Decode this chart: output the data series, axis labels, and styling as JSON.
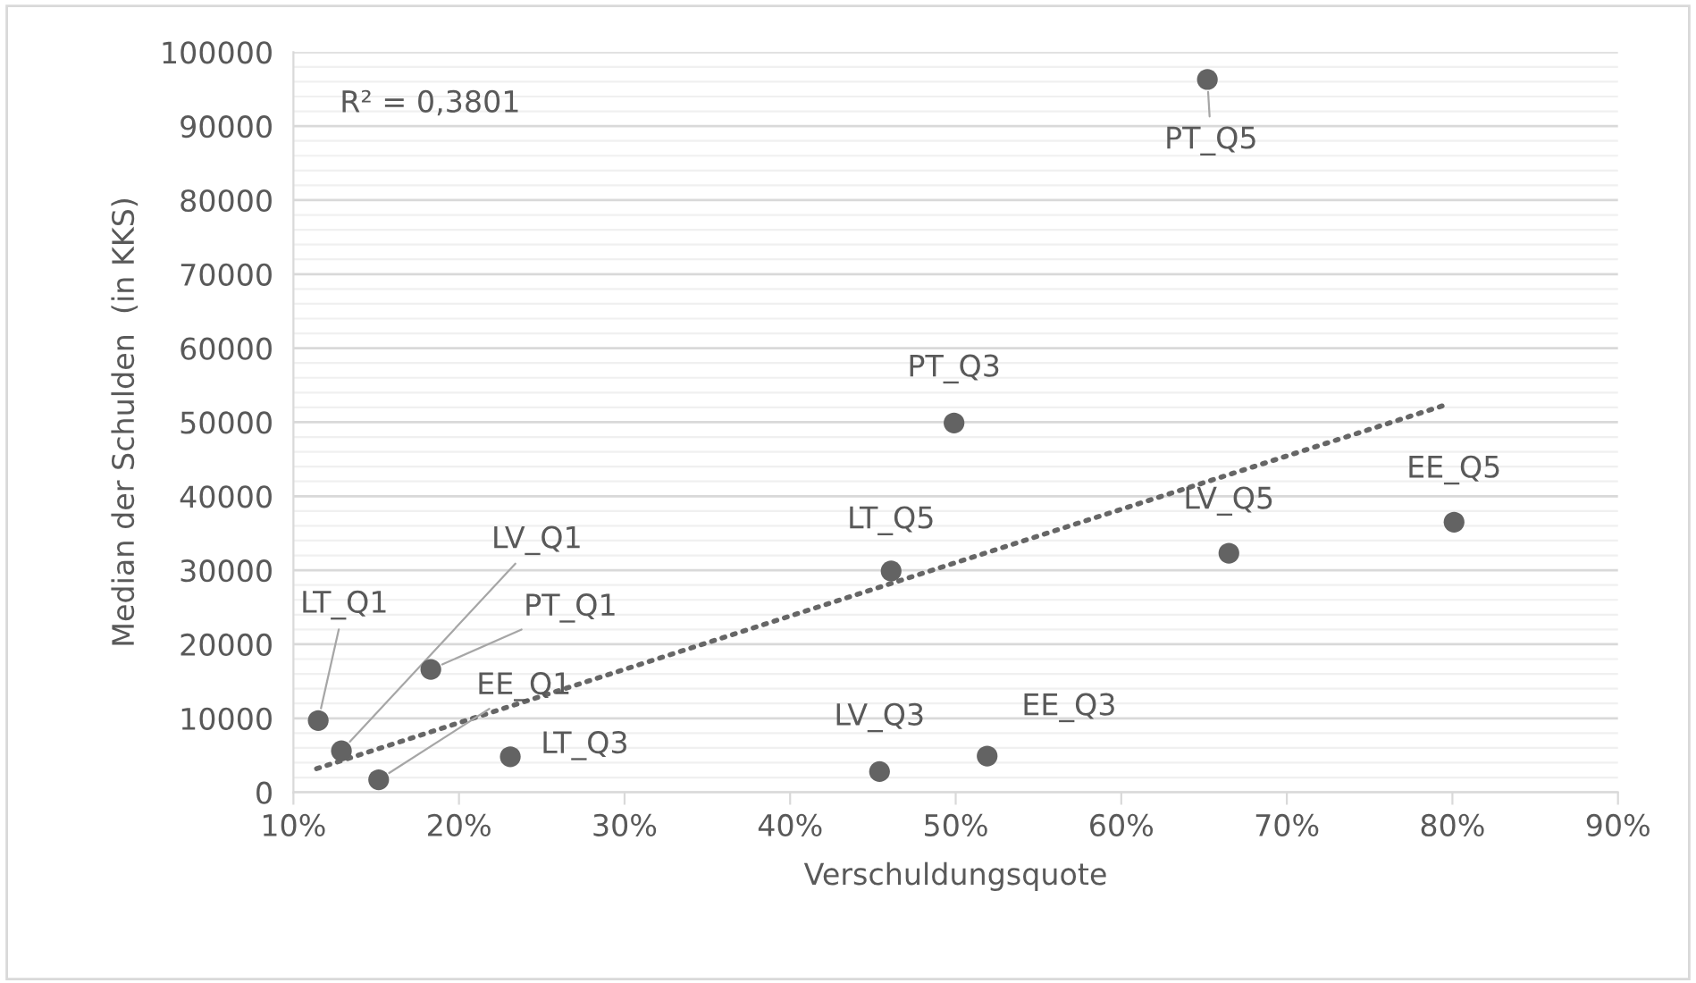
{
  "chart_data": {
    "type": "scatter",
    "xlabel": "Verschuldungsquote",
    "ylabel": "Median der Schulden  (in KKS)",
    "annotations": [
      "R² = 0,3801"
    ],
    "xlim": [
      10,
      90
    ],
    "xticks": [
      {
        "value": 10,
        "label": "10%"
      },
      {
        "value": 20,
        "label": "20%"
      },
      {
        "value": 30,
        "label": "30%"
      },
      {
        "value": 40,
        "label": "40%"
      },
      {
        "value": 50,
        "label": "50%"
      },
      {
        "value": 60,
        "label": "60%"
      },
      {
        "value": 70,
        "label": "70%"
      },
      {
        "value": 80,
        "label": "80%"
      },
      {
        "value": 90,
        "label": "90%"
      }
    ],
    "ylim": [
      0,
      100000
    ],
    "yticks": [
      0,
      10000,
      20000,
      30000,
      40000,
      50000,
      60000,
      70000,
      80000,
      90000,
      100000
    ],
    "grid": "y",
    "series": [
      {
        "name": "LT_Q1",
        "color": "#636363",
        "x": [
          11.5
        ],
        "values": [
          9700
        ]
      },
      {
        "name": "LV_Q1",
        "color": "#636363",
        "x": [
          12.9
        ],
        "values": [
          5600
        ]
      },
      {
        "name": "EE_Q1",
        "color": "#636363",
        "x": [
          15.15
        ],
        "values": [
          1700
        ]
      },
      {
        "name": "PT_Q1",
        "color": "#636363",
        "x": [
          18.3
        ],
        "values": [
          16600
        ]
      },
      {
        "name": "LT_Q3",
        "color": "#636363",
        "x": [
          23.1
        ],
        "values": [
          4800
        ]
      },
      {
        "name": "LV_Q3",
        "color": "#636363",
        "x": [
          45.4
        ],
        "values": [
          2800
        ]
      },
      {
        "name": "LT_Q5",
        "color": "#636363",
        "x": [
          46.1
        ],
        "values": [
          29900
        ]
      },
      {
        "name": "PT_Q3",
        "color": "#636363",
        "x": [
          49.9
        ],
        "values": [
          49900
        ]
      },
      {
        "name": "EE_Q3",
        "color": "#636363",
        "x": [
          51.9
        ],
        "values": [
          4900
        ]
      },
      {
        "name": "PT_Q5",
        "color": "#636363",
        "x": [
          65.2
        ],
        "values": [
          96300
        ]
      },
      {
        "name": "LV_Q5",
        "color": "#636363",
        "x": [
          66.5
        ],
        "values": [
          32300
        ]
      },
      {
        "name": "EE_Q5",
        "color": "#636363",
        "x": [
          80.1
        ],
        "values": [
          36500
        ]
      },
      {
        "type": "line",
        "color": "#666666",
        "x": [
          11.4,
          79.8
        ],
        "values": [
          3200,
          52500
        ],
        "line_style": "dotted",
        "marker": "none"
      }
    ]
  }
}
